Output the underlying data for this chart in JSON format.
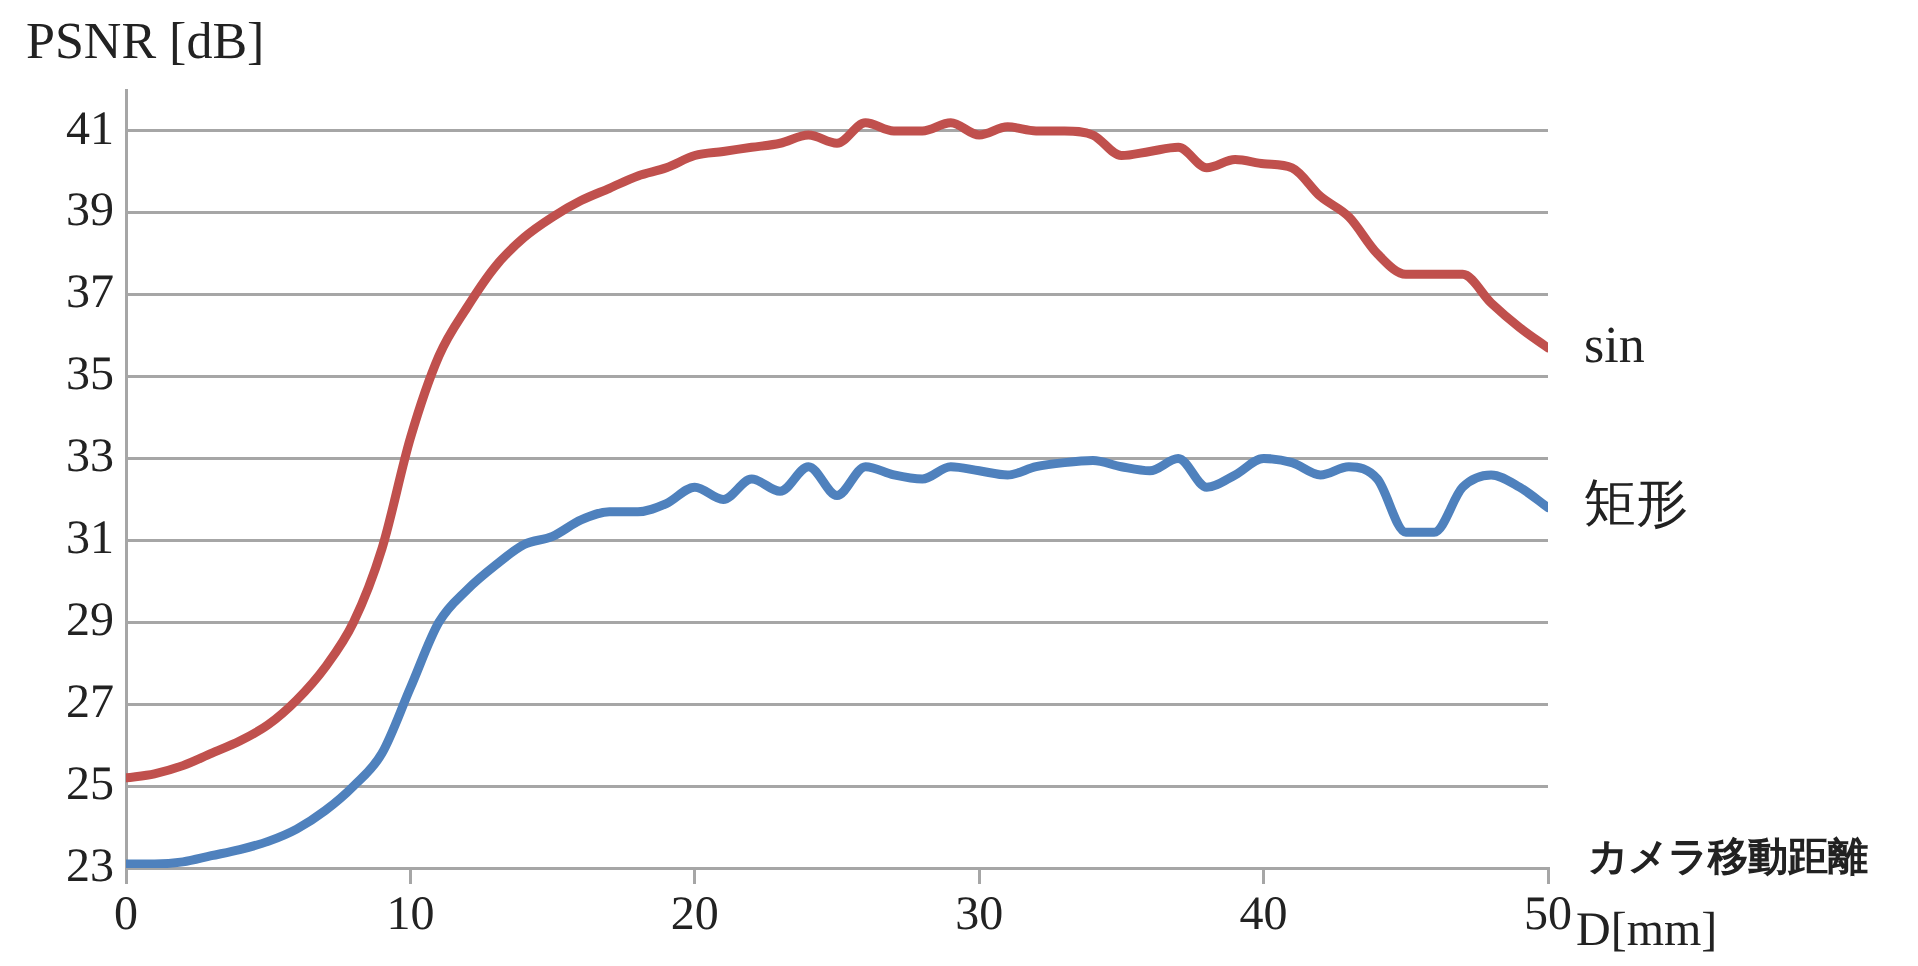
{
  "chart_data": {
    "type": "line",
    "ylabel": "PSNR [dB]",
    "xlabel": "D[mm]",
    "annotations": [
      "カメラ移動距離"
    ],
    "x": [
      0,
      1,
      2,
      3,
      4,
      5,
      6,
      7,
      8,
      9,
      10,
      11,
      12,
      13,
      14,
      15,
      16,
      17,
      18,
      19,
      20,
      21,
      22,
      23,
      24,
      25,
      26,
      27,
      28,
      29,
      30,
      31,
      32,
      33,
      34,
      35,
      36,
      37,
      38,
      39,
      40,
      41,
      42,
      43,
      44,
      45,
      46,
      47,
      48,
      49,
      50
    ],
    "series": [
      {
        "name": "sin",
        "color": "#c0504d",
        "values": [
          25.2,
          25.3,
          25.5,
          25.8,
          26.1,
          26.5,
          27.1,
          27.9,
          29.0,
          30.8,
          33.5,
          35.5,
          36.7,
          37.7,
          38.4,
          38.9,
          39.3,
          39.6,
          39.9,
          40.1,
          40.4,
          40.5,
          40.6,
          40.7,
          40.9,
          40.7,
          41.2,
          41.0,
          41.0,
          41.2,
          40.9,
          41.1,
          41.0,
          41.0,
          40.9,
          40.4,
          40.5,
          40.6,
          40.1,
          40.3,
          40.2,
          40.1,
          39.4,
          38.9,
          38.0,
          37.5,
          37.5,
          37.5,
          36.8,
          36.2,
          35.7
        ]
      },
      {
        "name": "矩形",
        "color": "#4f81bd",
        "values": [
          23.1,
          23.1,
          23.15,
          23.3,
          23.45,
          23.65,
          23.95,
          24.4,
          25.0,
          25.8,
          27.4,
          29.0,
          29.8,
          30.4,
          30.9,
          31.1,
          31.5,
          31.7,
          31.7,
          31.9,
          32.3,
          32.0,
          32.5,
          32.2,
          32.8,
          32.1,
          32.8,
          32.6,
          32.5,
          32.8,
          32.7,
          32.6,
          32.8,
          32.9,
          32.95,
          32.8,
          32.7,
          33.0,
          32.3,
          32.6,
          33.0,
          32.9,
          32.6,
          32.8,
          32.5,
          31.2,
          31.2,
          32.3,
          32.6,
          32.3,
          31.8
        ]
      }
    ],
    "xlim": [
      0,
      50
    ],
    "xticks": [
      0,
      10,
      20,
      30,
      40,
      50
    ],
    "ylim": [
      23,
      42
    ],
    "yticks": [
      23,
      25,
      27,
      29,
      31,
      33,
      35,
      37,
      39,
      41
    ],
    "grid": "y",
    "legend": false,
    "marker": "none",
    "line_style": "solid"
  }
}
